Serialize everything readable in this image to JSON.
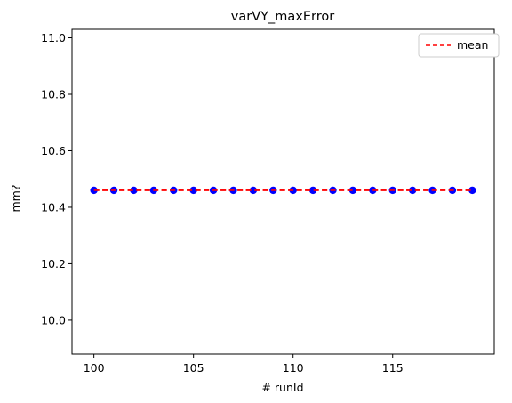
{
  "chart_data": {
    "type": "scatter",
    "title": "varVY_maxError",
    "xlabel": "# runId",
    "ylabel": "mm?",
    "xlim": [
      98.9,
      120.1
    ],
    "ylim": [
      9.88,
      11.03
    ],
    "xticks": [
      100,
      105,
      110,
      115
    ],
    "xtick_labels": [
      "100",
      "105",
      "110",
      "115"
    ],
    "yticks": [
      10.0,
      10.2,
      10.4,
      10.6,
      10.8,
      11.0
    ],
    "ytick_labels": [
      "10.0",
      "10.2",
      "10.4",
      "10.6",
      "10.8",
      "11.0"
    ],
    "grid": false,
    "legend_position": "top-right",
    "series": [
      {
        "kind": "points",
        "color": "#0000ff",
        "x": [
          100,
          101,
          102,
          103,
          104,
          105,
          106,
          107,
          108,
          109,
          110,
          111,
          112,
          113,
          114,
          115,
          116,
          117,
          118,
          119
        ],
        "y": [
          10.46,
          10.46,
          10.46,
          10.46,
          10.46,
          10.46,
          10.46,
          10.46,
          10.46,
          10.46,
          10.46,
          10.46,
          10.46,
          10.46,
          10.46,
          10.46,
          10.46,
          10.46,
          10.46,
          10.46
        ]
      },
      {
        "kind": "line",
        "name": "mean",
        "style": "dashed",
        "color": "#ff0000",
        "x": [
          100,
          119
        ],
        "y": [
          10.46,
          10.46
        ]
      }
    ]
  }
}
